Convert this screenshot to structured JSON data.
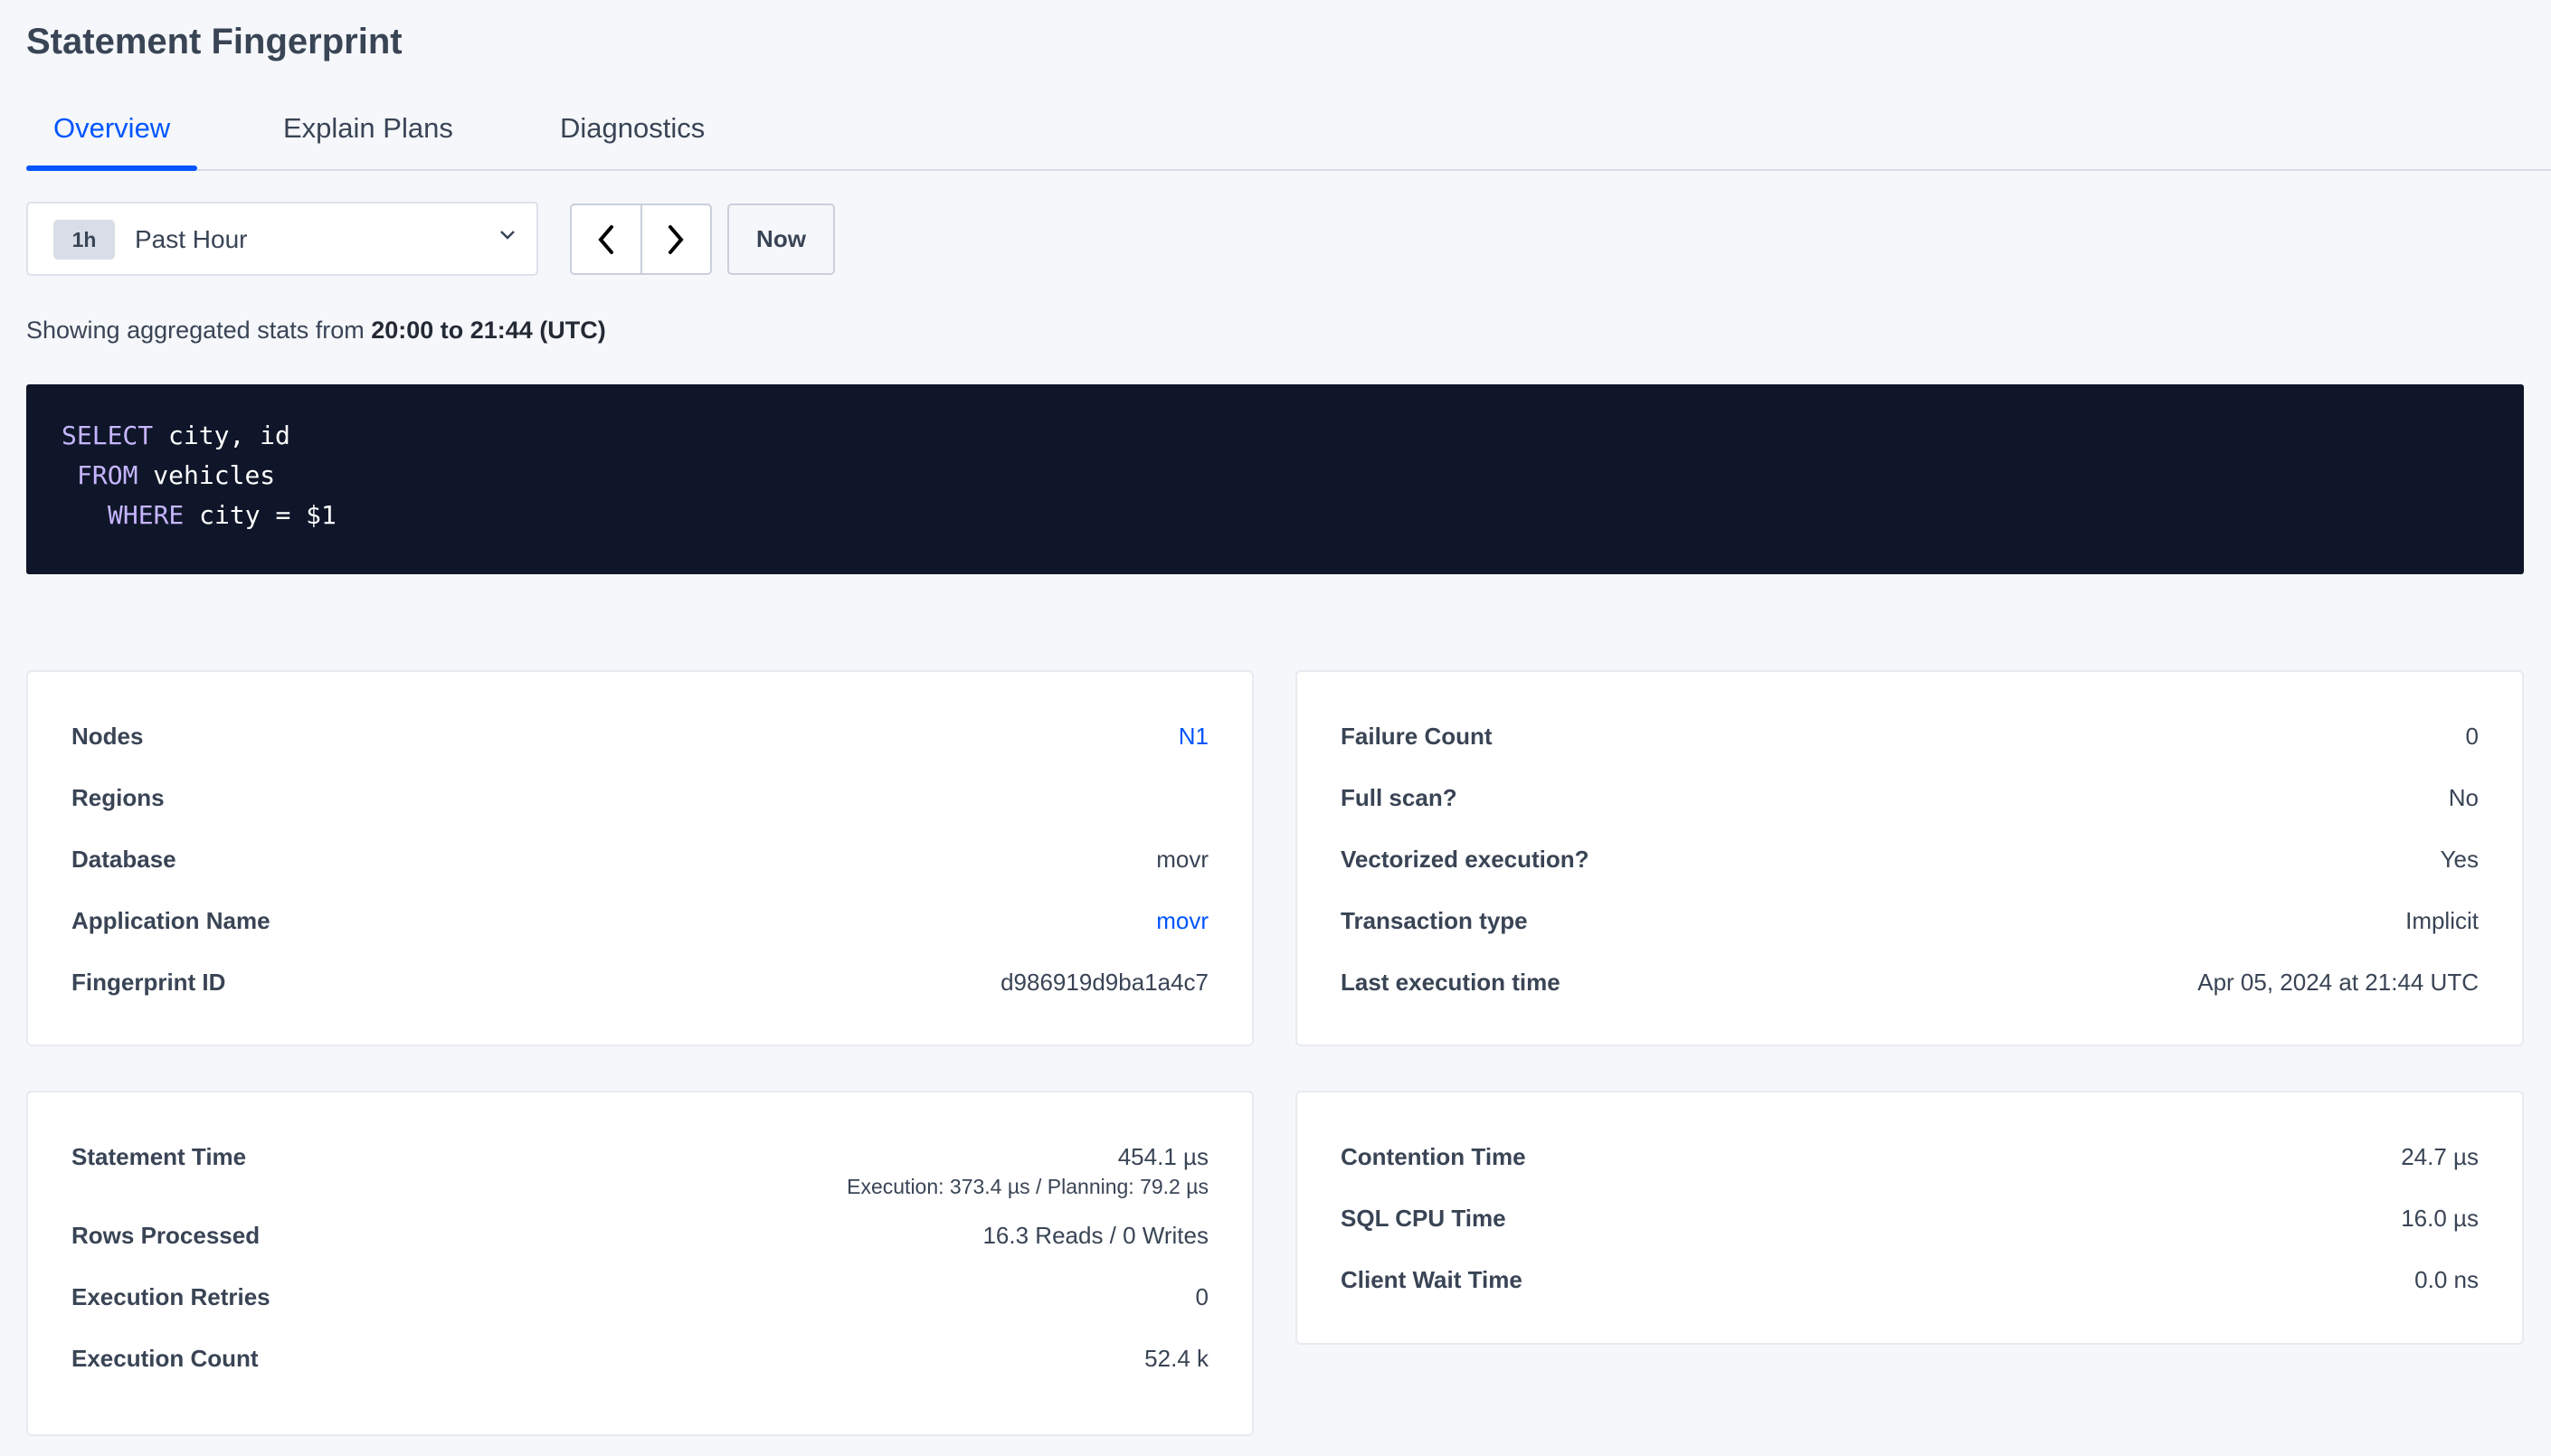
{
  "header": {
    "title": "Statement Fingerprint"
  },
  "tabs": [
    {
      "label": "Overview",
      "active": true
    },
    {
      "label": "Explain Plans"
    },
    {
      "label": "Diagnostics"
    }
  ],
  "time_range": {
    "badge": "1h",
    "label": "Past Hour",
    "prev_icon": "chevron-left-icon",
    "next_icon": "chevron-right-icon",
    "now_label": "Now"
  },
  "showing": {
    "prefix": "Showing aggregated stats from ",
    "range": "20:00 to 21:44 (UTC)"
  },
  "sql": {
    "lines": [
      {
        "kw": "SELECT",
        "rest": " city, id"
      },
      {
        "kw": "FROM",
        "rest": " vehicles"
      },
      {
        "kw": "WHERE",
        "rest": " city = $1"
      }
    ]
  },
  "overview_left": [
    {
      "label": "Nodes",
      "value": "N1",
      "link": true
    },
    {
      "label": "Regions",
      "value": ""
    },
    {
      "label": "Database",
      "value": "movr"
    },
    {
      "label": "Application Name",
      "value": "movr",
      "link": true
    },
    {
      "label": "Fingerprint ID",
      "value": "d986919d9ba1a4c7"
    }
  ],
  "overview_right": [
    {
      "label": "Failure Count",
      "value": "0"
    },
    {
      "label": "Full scan?",
      "value": "No"
    },
    {
      "label": "Vectorized execution?",
      "value": "Yes"
    },
    {
      "label": "Transaction type",
      "value": "Implicit"
    },
    {
      "label": "Last execution time",
      "value": "Apr 05, 2024 at 21:44 UTC"
    }
  ],
  "stats_left": {
    "statement_time": {
      "label": "Statement Time",
      "value": "454.1 µs",
      "detail": "Execution: 373.4 µs / Planning: 79.2 µs"
    },
    "rows": [
      {
        "label": "Rows Processed",
        "value": "16.3 Reads / 0 Writes"
      },
      {
        "label": "Execution Retries",
        "value": "0"
      },
      {
        "label": "Execution Count",
        "value": "52.4 k"
      }
    ]
  },
  "stats_right": [
    {
      "label": "Contention Time",
      "value": "24.7 µs"
    },
    {
      "label": "SQL CPU Time",
      "value": "16.0 µs"
    },
    {
      "label": "Client Wait Time",
      "value": "0.0 ns"
    }
  ],
  "colors": {
    "accent": "#0055ff",
    "code_bg": "#0f1629",
    "keyword": "#c6b5ff"
  }
}
